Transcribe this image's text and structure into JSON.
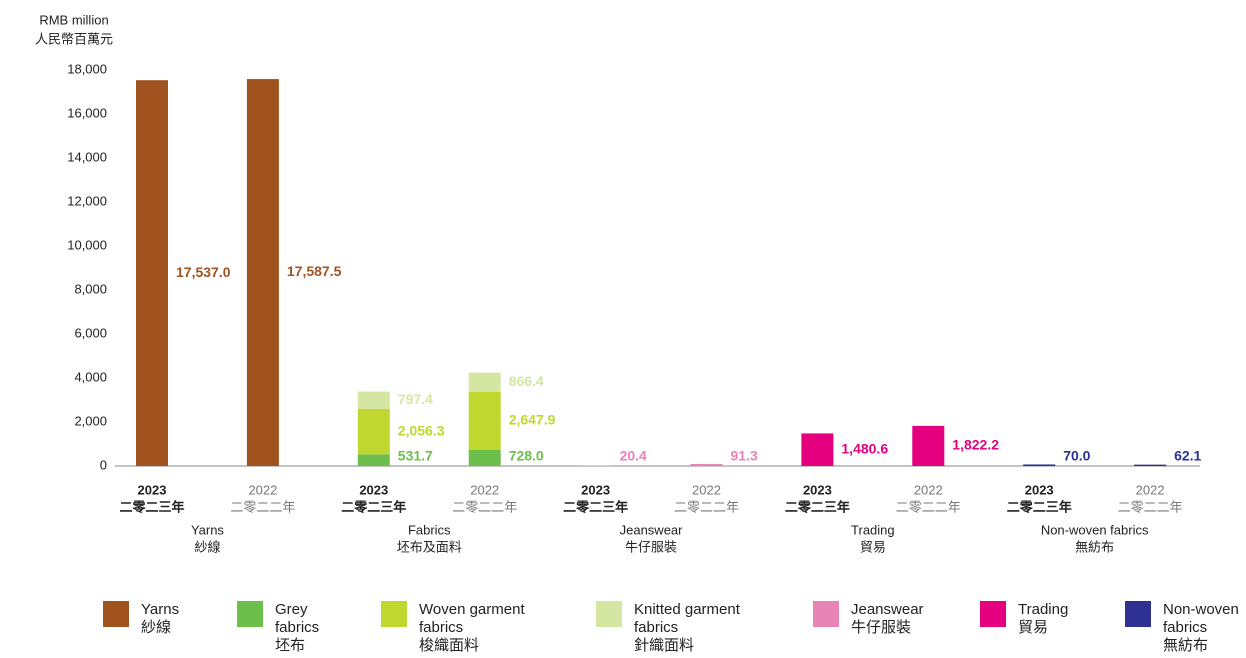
{
  "chart_data": {
    "type": "stacked_bar",
    "ylabel": "RMB million",
    "ylabel_zh": "人民幣百萬元",
    "ylim": [
      0,
      18000
    ],
    "yticks": [
      0,
      {
        "value": 2000,
        "label": "2,000"
      },
      {
        "value": 4000,
        "label": "4,000"
      },
      {
        "value": 6000,
        "label": "6,000"
      },
      {
        "value": 8000,
        "label": "8,000"
      },
      {
        "value": 10000,
        "label": "10,000"
      },
      {
        "value": 12000,
        "label": "12,000"
      },
      {
        "value": 14000,
        "label": "14,000"
      },
      {
        "value": 16000,
        "label": "16,000"
      },
      {
        "value": 18000,
        "label": "18,000"
      }
    ],
    "categories": [
      "2023",
      "2022",
      "2023",
      "2022",
      "2023",
      "2022",
      "2023",
      "2022",
      "2023",
      "2022"
    ],
    "categories_zh": [
      "二零二三年",
      "二零二二年",
      "二零二三年",
      "二零二二年",
      "二零二三年",
      "二零二二年",
      "二零二三年",
      "二零二二年",
      "二零二三年",
      "二零二二年"
    ],
    "groups": [
      {
        "name": "Yarns",
        "name_zh": "紗線"
      },
      {
        "name": "Fabrics",
        "name_zh": "坯布及面料"
      },
      {
        "name": "Jeanswear",
        "name_zh": "牛仔服裝"
      },
      {
        "name": "Trading",
        "name_zh": "貿易"
      },
      {
        "name": "Non-woven fabrics",
        "name_zh": "無紡布"
      }
    ],
    "series": [
      {
        "name": "Yarns",
        "name_zh": "紗線",
        "color": "#a0531f",
        "values": [
          17537.0,
          17587.5,
          null,
          null,
          null,
          null,
          null,
          null,
          null,
          null
        ],
        "value_labels": [
          "17,537.0",
          "17,587.5",
          null,
          null,
          null,
          null,
          null,
          null,
          null,
          null
        ]
      },
      {
        "name": "Grey fabrics",
        "name_zh": "坯布",
        "color": "#6dbf4b",
        "values": [
          null,
          null,
          531.7,
          728.0,
          null,
          null,
          null,
          null,
          null,
          null
        ],
        "value_labels": [
          null,
          null,
          "531.7",
          "728.0",
          null,
          null,
          null,
          null,
          null,
          null
        ]
      },
      {
        "name": "Woven garment fabrics",
        "name_zh": "梭織面料",
        "color": "#c0d730",
        "values": [
          null,
          null,
          2056.3,
          2647.9,
          null,
          null,
          null,
          null,
          null,
          null
        ],
        "value_labels": [
          null,
          null,
          "2,056.3",
          "2,647.9",
          null,
          null,
          null,
          null,
          null,
          null
        ]
      },
      {
        "name": "Knitted garment fabrics",
        "name_zh": "針織面料",
        "color": "#d4e6a1",
        "values": [
          null,
          null,
          797.4,
          866.4,
          null,
          null,
          null,
          null,
          null,
          null
        ],
        "value_labels": [
          null,
          null,
          "797.4",
          "866.4",
          null,
          null,
          null,
          null,
          null,
          null
        ]
      },
      {
        "name": "Jeanswear",
        "name_zh": "牛仔服裝",
        "color": "#e883b6",
        "values": [
          null,
          null,
          null,
          null,
          20.4,
          91.3,
          null,
          null,
          null,
          null
        ],
        "value_labels": [
          null,
          null,
          null,
          null,
          "20.4",
          "91.3",
          null,
          null,
          null,
          null
        ]
      },
      {
        "name": "Trading",
        "name_zh": "貿易",
        "color": "#e4007f",
        "values": [
          null,
          null,
          null,
          null,
          null,
          null,
          1480.6,
          1822.2,
          null,
          null
        ],
        "value_labels": [
          null,
          null,
          null,
          null,
          null,
          null,
          "1,480.6",
          "1,822.2",
          null,
          null
        ]
      },
      {
        "name": "Non-woven fabrics",
        "name_zh": "無紡布",
        "color": "#2e3192",
        "values": [
          null,
          null,
          null,
          null,
          null,
          null,
          null,
          null,
          70.0,
          62.1
        ],
        "value_labels": [
          null,
          null,
          null,
          null,
          null,
          null,
          null,
          null,
          "70.0",
          "62.1"
        ]
      }
    ]
  }
}
